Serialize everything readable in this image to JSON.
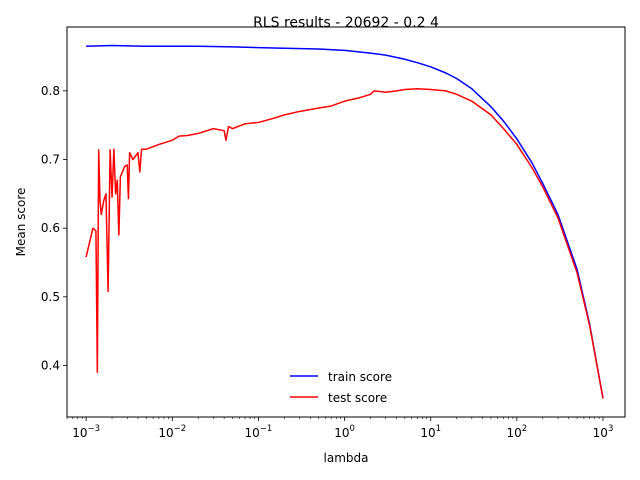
{
  "chart_data": {
    "type": "line",
    "title": "RLS results - 20692 - 0.2 4",
    "xlabel": "lambda",
    "ylabel": "Mean score",
    "xscale": "log",
    "xlim": [
      0.0006,
      1800
    ],
    "ylim": [
      0.325,
      0.893
    ],
    "x_ticks": [
      {
        "value": 0.001,
        "base": "10",
        "exp": "−3"
      },
      {
        "value": 0.01,
        "base": "10",
        "exp": "−2"
      },
      {
        "value": 0.1,
        "base": "10",
        "exp": "−1"
      },
      {
        "value": 1,
        "base": "10",
        "exp": "0"
      },
      {
        "value": 10,
        "base": "10",
        "exp": "1"
      },
      {
        "value": 100,
        "base": "10",
        "exp": "2"
      },
      {
        "value": 1000,
        "base": "10",
        "exp": "3"
      }
    ],
    "y_ticks": [
      {
        "value": 0.4,
        "label": "0.4"
      },
      {
        "value": 0.5,
        "label": "0.5"
      },
      {
        "value": 0.6,
        "label": "0.6"
      },
      {
        "value": 0.7,
        "label": "0.7"
      },
      {
        "value": 0.8,
        "label": "0.8"
      }
    ],
    "grid": false,
    "legend_position": "lower-center",
    "series": [
      {
        "name": "train score",
        "color": "#0000ff",
        "x": [
          0.001,
          0.002,
          0.005,
          0.01,
          0.02,
          0.05,
          0.1,
          0.2,
          0.5,
          1,
          2,
          3,
          5,
          7,
          10,
          15,
          20,
          30,
          50,
          70,
          100,
          150,
          200,
          300,
          500,
          700,
          1000
        ],
        "y": [
          0.865,
          0.866,
          0.865,
          0.865,
          0.865,
          0.864,
          0.863,
          0.862,
          0.861,
          0.859,
          0.855,
          0.852,
          0.846,
          0.841,
          0.835,
          0.826,
          0.818,
          0.803,
          0.777,
          0.756,
          0.73,
          0.695,
          0.665,
          0.62,
          0.54,
          0.46,
          0.352
        ]
      },
      {
        "name": "test score",
        "color": "#ff0000",
        "x": [
          0.001,
          0.0011,
          0.0012,
          0.0013,
          0.00135,
          0.0014,
          0.00145,
          0.0015,
          0.0016,
          0.0017,
          0.0018,
          0.0019,
          0.002,
          0.0021,
          0.0022,
          0.0023,
          0.0024,
          0.0025,
          0.0026,
          0.0028,
          0.003,
          0.0031,
          0.0032,
          0.0035,
          0.004,
          0.0042,
          0.0044,
          0.005,
          0.007,
          0.01,
          0.012,
          0.015,
          0.02,
          0.03,
          0.04,
          0.042,
          0.045,
          0.05,
          0.07,
          0.1,
          0.15,
          0.2,
          0.3,
          0.5,
          0.7,
          1,
          1.5,
          2,
          2.2,
          3,
          4,
          5,
          7,
          10,
          15,
          20,
          30,
          50,
          70,
          100,
          150,
          200,
          300,
          500,
          700,
          1000
        ],
        "y": [
          0.558,
          0.58,
          0.6,
          0.596,
          0.39,
          0.714,
          0.64,
          0.62,
          0.64,
          0.65,
          0.508,
          0.714,
          0.645,
          0.715,
          0.65,
          0.67,
          0.59,
          0.675,
          0.68,
          0.69,
          0.692,
          0.643,
          0.71,
          0.7,
          0.71,
          0.682,
          0.715,
          0.715,
          0.722,
          0.728,
          0.734,
          0.735,
          0.738,
          0.745,
          0.742,
          0.728,
          0.748,
          0.745,
          0.752,
          0.754,
          0.76,
          0.765,
          0.77,
          0.775,
          0.778,
          0.785,
          0.79,
          0.795,
          0.8,
          0.798,
          0.8,
          0.802,
          0.803,
          0.802,
          0.8,
          0.795,
          0.785,
          0.765,
          0.745,
          0.722,
          0.688,
          0.66,
          0.615,
          0.535,
          0.458,
          0.352
        ]
      }
    ]
  }
}
